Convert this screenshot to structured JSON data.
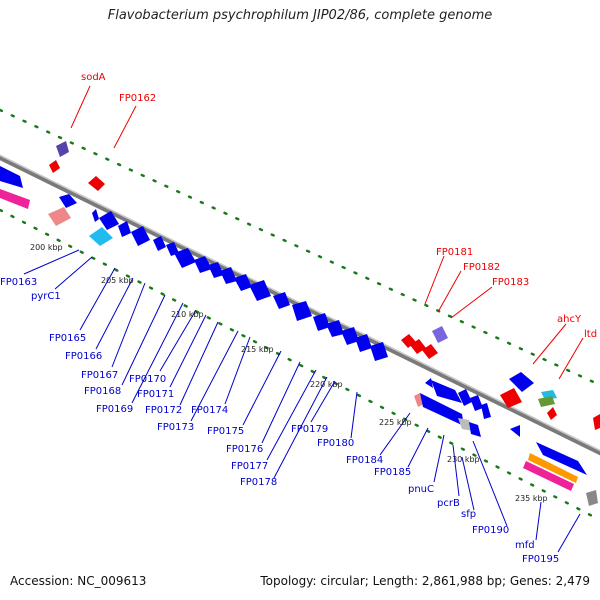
{
  "title": "Flavobacterium psychrophilum JIP02/86, complete genome",
  "footer": {
    "accession": "Accession: NC_009613",
    "summary": "Topology: circular; Length: 2,861,988 bp; Genes: 2,479"
  },
  "colors": {
    "forward": "#0000ee",
    "reverse": "#ee0000",
    "backbone": "#888888",
    "dots": "#1a7a1a"
  },
  "scale_ticks": [
    "200 kbp",
    "205 kbp",
    "210 kbp",
    "215 kbp",
    "220 kbp",
    "225 kbp",
    "230 kbp",
    "235 kbp"
  ],
  "top_labels": [
    "sodA",
    "FP0162",
    "FP0181",
    "FP0182",
    "FP0183",
    "ahcY",
    "ltd"
  ],
  "bottom_labels": [
    "FP0163",
    "pyrC1",
    "FP0165",
    "FP0166",
    "FP0167",
    "FP0168",
    "FP0169",
    "FP0170",
    "FP0171",
    "FP0172",
    "FP0173",
    "FP0174",
    "FP0175",
    "FP0176",
    "FP0177",
    "FP0178",
    "FP0179",
    "FP0180",
    "FP0184",
    "FP0185",
    "pnuC",
    "pcrB",
    "sfp",
    "FP0190",
    "mfd",
    "FP0195"
  ]
}
